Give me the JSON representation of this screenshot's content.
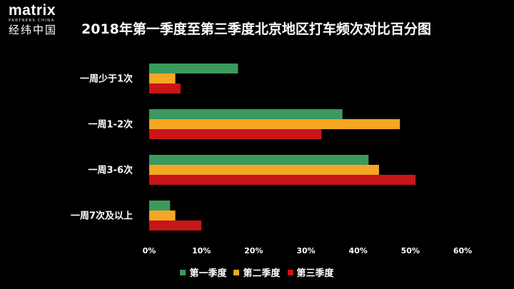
{
  "logo": {
    "main": "matrix",
    "sub": "PARTNERS CHINA",
    "cn": "经纬中国"
  },
  "chart_data": {
    "type": "bar",
    "orientation": "horizontal",
    "title": "2018年第一季度至第三季度北京地区打车频次对比百分图",
    "categories": [
      "一周少于1次",
      "一周1-2次",
      "一周3-6次",
      "一周7次及以上"
    ],
    "series": [
      {
        "name": "第一季度",
        "color": "#3a9a5e",
        "values": [
          17,
          37,
          42,
          4
        ]
      },
      {
        "name": "第二季度",
        "color": "#f5a623",
        "values": [
          5,
          48,
          44,
          5
        ]
      },
      {
        "name": "第三季度",
        "color": "#c81518",
        "values": [
          6,
          33,
          51,
          10
        ]
      }
    ],
    "xlim": [
      0,
      60
    ],
    "xticks": [
      "0%",
      "10%",
      "20%",
      "30%",
      "40%",
      "50%",
      "60%"
    ],
    "grid": false,
    "legend_position": "bottom"
  }
}
